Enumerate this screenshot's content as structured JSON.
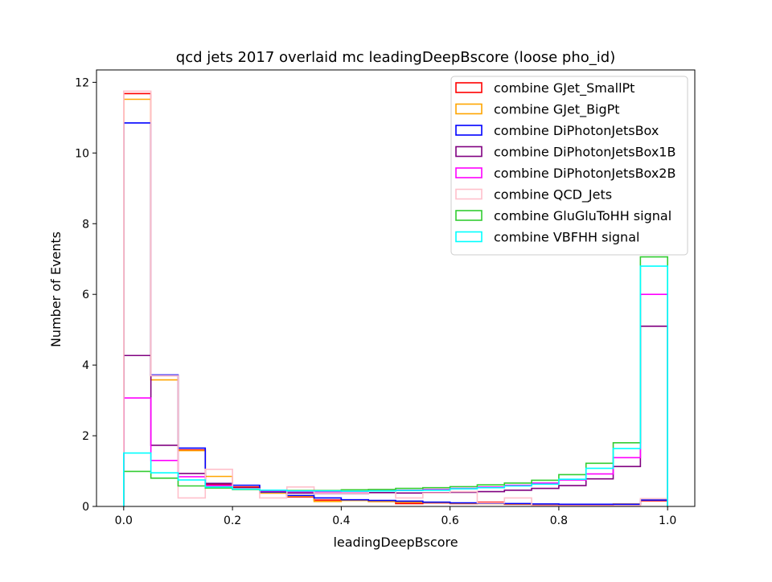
{
  "chart_data": {
    "type": "histogram-step",
    "title": "qcd jets 2017 overlaid mc leadingDeepBscore (loose pho_id)",
    "xlabel": "leadingDeepBscore",
    "ylabel": "Number of Events",
    "xlim": [
      -0.05,
      1.05
    ],
    "ylim": [
      0,
      12.35
    ],
    "xticks": [
      0.0,
      0.2,
      0.4,
      0.6,
      0.8,
      1.0
    ],
    "xtick_labels": [
      "0.0",
      "0.2",
      "0.4",
      "0.6",
      "0.8",
      "1.0"
    ],
    "yticks": [
      0,
      2,
      4,
      6,
      8,
      10,
      12
    ],
    "ytick_labels": [
      "0",
      "2",
      "4",
      "6",
      "8",
      "10",
      "12"
    ],
    "grid": false,
    "legend_position": "top-right",
    "bin_edges": [
      0.0,
      0.05,
      0.1,
      0.15,
      0.2,
      0.25,
      0.3,
      0.35,
      0.4,
      0.45,
      0.5,
      0.55,
      0.6,
      0.65,
      0.7,
      0.75,
      0.8,
      0.85,
      0.9,
      0.95,
      1.0
    ],
    "series": [
      {
        "name": "combine GJet_SmallPt",
        "color": "#ff0000",
        "values": [
          11.68,
          3.7,
          1.6,
          0.62,
          0.55,
          0.38,
          0.27,
          0.18,
          0.18,
          0.14,
          0.08,
          0.1,
          0.08,
          0.12,
          0.06,
          0.05,
          0.05,
          0.05,
          0.06,
          0.16
        ]
      },
      {
        "name": "combine GJet_BigPt",
        "color": "#ffa500",
        "values": [
          11.52,
          3.58,
          1.58,
          0.85,
          0.52,
          0.38,
          0.29,
          0.14,
          0.17,
          0.14,
          0.12,
          0.11,
          0.09,
          0.08,
          0.07,
          0.06,
          0.06,
          0.06,
          0.07,
          0.18
        ]
      },
      {
        "name": "combine DiPhotonJetsBox",
        "color": "#0000ff",
        "values": [
          10.85,
          3.72,
          1.65,
          0.65,
          0.6,
          0.41,
          0.31,
          0.24,
          0.19,
          0.17,
          0.15,
          0.12,
          0.1,
          0.09,
          0.08,
          0.07,
          0.06,
          0.06,
          0.06,
          0.18
        ]
      },
      {
        "name": "combine DiPhotonJetsBox1B",
        "color": "#800080",
        "values": [
          4.27,
          1.73,
          0.93,
          0.65,
          0.52,
          0.43,
          0.38,
          0.37,
          0.37,
          0.39,
          0.38,
          0.39,
          0.4,
          0.42,
          0.46,
          0.51,
          0.59,
          0.78,
          1.13,
          5.1
        ]
      },
      {
        "name": "combine DiPhotonJetsBox2B",
        "color": "#ff00ff",
        "values": [
          3.07,
          1.3,
          0.84,
          0.59,
          0.5,
          0.44,
          0.42,
          0.41,
          0.42,
          0.44,
          0.46,
          0.48,
          0.51,
          0.55,
          0.6,
          0.66,
          0.75,
          0.92,
          1.38,
          6.0
        ]
      },
      {
        "name": "combine QCD_Jets",
        "color": "#ffc0cb",
        "values": [
          11.75,
          3.7,
          0.24,
          1.05,
          0.5,
          0.24,
          0.55,
          0.38,
          0.38,
          0.48,
          0.24,
          0.38,
          0.42,
          0.1,
          0.24,
          0.02,
          0.02,
          0.02,
          0.02,
          0.22
        ]
      },
      {
        "name": "combine GluGluToHH signal",
        "color": "#32cd32",
        "values": [
          0.99,
          0.8,
          0.58,
          0.52,
          0.48,
          0.46,
          0.45,
          0.45,
          0.47,
          0.48,
          0.51,
          0.53,
          0.56,
          0.61,
          0.66,
          0.74,
          0.9,
          1.22,
          1.8,
          7.06
        ]
      },
      {
        "name": "combine VBFHH signal",
        "color": "#00ffff",
        "values": [
          1.51,
          0.95,
          0.75,
          0.55,
          0.49,
          0.46,
          0.44,
          0.44,
          0.43,
          0.44,
          0.45,
          0.46,
          0.5,
          0.53,
          0.58,
          0.63,
          0.77,
          1.08,
          1.64,
          6.8
        ]
      }
    ]
  }
}
